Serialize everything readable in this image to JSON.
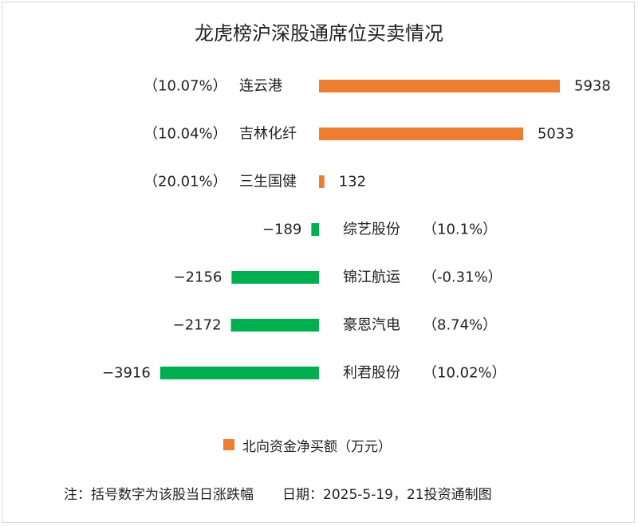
{
  "chart_data": {
    "type": "bar",
    "orientation": "horizontal",
    "title": "龙虎榜沪深股通席位买卖情况",
    "categories": [
      "连云港",
      "吉林化纤",
      "三生国健",
      "综艺股份",
      "锦江航运",
      "豪恩汽电",
      "利君股份"
    ],
    "change_labels": [
      "（10.07%）",
      "（10.04%）",
      "（20.01%）",
      "（10.1%）",
      "（-0.31%）",
      "（8.74%）",
      "（10.02%）"
    ],
    "series": [
      {
        "name": "北向资金净买额（万元）",
        "values": [
          5938,
          5033,
          132,
          -189,
          -2156,
          -2172,
          -3916
        ]
      }
    ],
    "colors": {
      "positive": "#ED7D31",
      "negative": "#00B050"
    },
    "legend_position": "bottom",
    "grid": false,
    "xlim": [
      -4400,
      6900
    ]
  },
  "legend": {
    "label": "北向资金净买额（万元）"
  },
  "footer": {
    "note": "注：括号数字为该股当日涨跌幅",
    "source": "日期：2025-5-19，21投资通制图"
  }
}
